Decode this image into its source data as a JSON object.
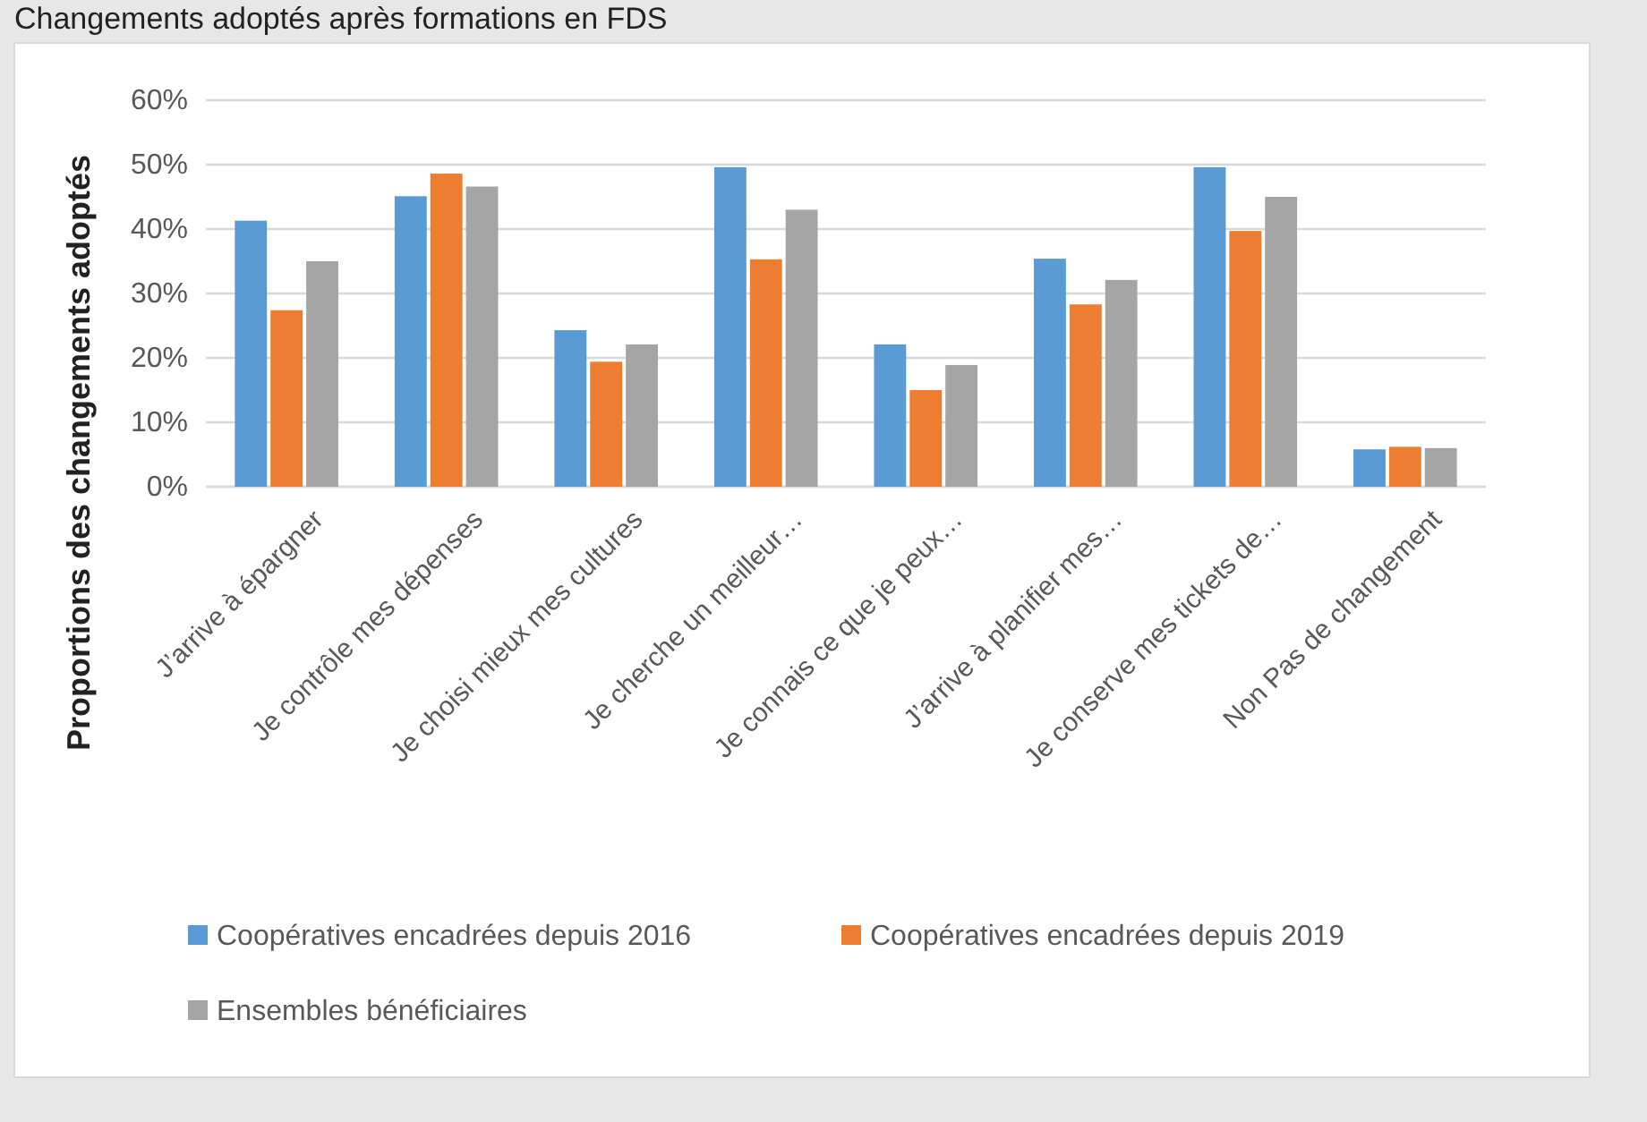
{
  "chart_data": {
    "type": "bar",
    "title": "Changements adoptés après formations en FDS",
    "ylabel": "Proportions des changements adoptés",
    "categories": [
      "J’arrive à épargner",
      "Je contrôle mes dépenses",
      "Je choisi mieux mes cultures",
      "Je cherche un meilleur…",
      "Je connais ce que je peux…",
      "J’arrive à planifier mes…",
      "Je conserve mes tickets de…",
      "Non Pas de changement"
    ],
    "series": [
      {
        "name": "Coopératives encadrées depuis 2016",
        "color": "#5b9bd5",
        "values": [
          41.3,
          45.1,
          24.3,
          49.6,
          22.1,
          35.4,
          49.6,
          5.8
        ]
      },
      {
        "name": "Coopératives encadrées depuis 2019",
        "color": "#ed7d31",
        "values": [
          27.4,
          48.6,
          19.4,
          35.3,
          15.0,
          28.3,
          39.7,
          6.2
        ]
      },
      {
        "name": "Ensembles bénéficiaires",
        "color": "#a5a5a5",
        "values": [
          35.0,
          46.6,
          22.1,
          43.0,
          18.9,
          32.1,
          45.0,
          6.0
        ]
      }
    ],
    "ylim": [
      0,
      60
    ],
    "yticks": [
      {
        "value": 0,
        "label": "0%"
      },
      {
        "value": 10,
        "label": "10%"
      },
      {
        "value": 20,
        "label": "20%"
      },
      {
        "value": 30,
        "label": "30%"
      },
      {
        "value": 40,
        "label": "40%"
      },
      {
        "value": 50,
        "label": "50%"
      },
      {
        "value": 60,
        "label": "60%"
      }
    ],
    "grid": "y",
    "legend": "bottom"
  }
}
